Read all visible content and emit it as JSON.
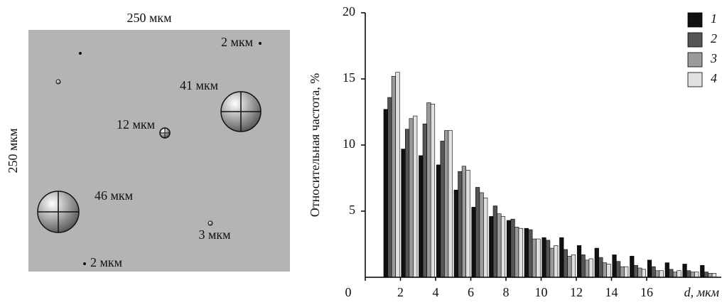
{
  "diagram": {
    "top_label": "250 мкм",
    "side_label": "250 мкм",
    "particles": [
      {
        "label": "2 мкм"
      },
      {
        "label": "41 мкм"
      },
      {
        "label": "12 мкм"
      },
      {
        "label": "46 мкм"
      },
      {
        "label": "3 мкм"
      },
      {
        "label": "2 мкм"
      }
    ]
  },
  "chart_data": {
    "type": "bar",
    "y_label": "Относительная частота, %",
    "x_label": "d, мкм",
    "x": [
      1.5,
      2.5,
      3.5,
      4.5,
      5.5,
      6.5,
      7.5,
      8.5,
      9.5,
      10.5,
      11.5,
      12.5,
      13.5,
      14.5,
      15.5,
      16.5,
      17.5,
      18.5,
      19.5
    ],
    "series": [
      {
        "name": "1",
        "color": "#111111",
        "values": [
          12.7,
          9.7,
          9.2,
          8.5,
          6.6,
          5.3,
          4.6,
          4.3,
          3.7,
          3.0,
          3.0,
          2.4,
          2.2,
          1.7,
          1.6,
          1.3,
          1.1,
          1.0,
          0.9
        ]
      },
      {
        "name": "2",
        "color": "#555555",
        "values": [
          13.6,
          11.2,
          11.6,
          10.3,
          8.0,
          6.8,
          5.4,
          4.4,
          3.6,
          2.8,
          2.1,
          1.7,
          1.5,
          1.2,
          0.9,
          0.8,
          0.6,
          0.5,
          0.4
        ]
      },
      {
        "name": "3",
        "color": "#9a9a9a",
        "values": [
          15.2,
          12.0,
          13.2,
          11.1,
          8.4,
          6.4,
          4.8,
          3.8,
          2.9,
          2.2,
          1.6,
          1.3,
          1.1,
          0.8,
          0.7,
          0.5,
          0.4,
          0.4,
          0.3
        ]
      },
      {
        "name": "4",
        "color": "#e0e0e0",
        "values": [
          15.5,
          12.2,
          13.1,
          11.1,
          8.1,
          6.0,
          4.6,
          3.7,
          2.9,
          2.4,
          1.7,
          1.4,
          1.0,
          0.8,
          0.6,
          0.5,
          0.5,
          0.4,
          0.3
        ]
      }
    ],
    "xlim": [
      0,
      20
    ],
    "xticks": [
      0,
      2,
      4,
      6,
      8,
      10,
      12,
      14,
      16
    ],
    "ylim": [
      0,
      20
    ],
    "yticks": [
      5,
      10,
      15,
      20
    ],
    "legend": "upper right"
  }
}
